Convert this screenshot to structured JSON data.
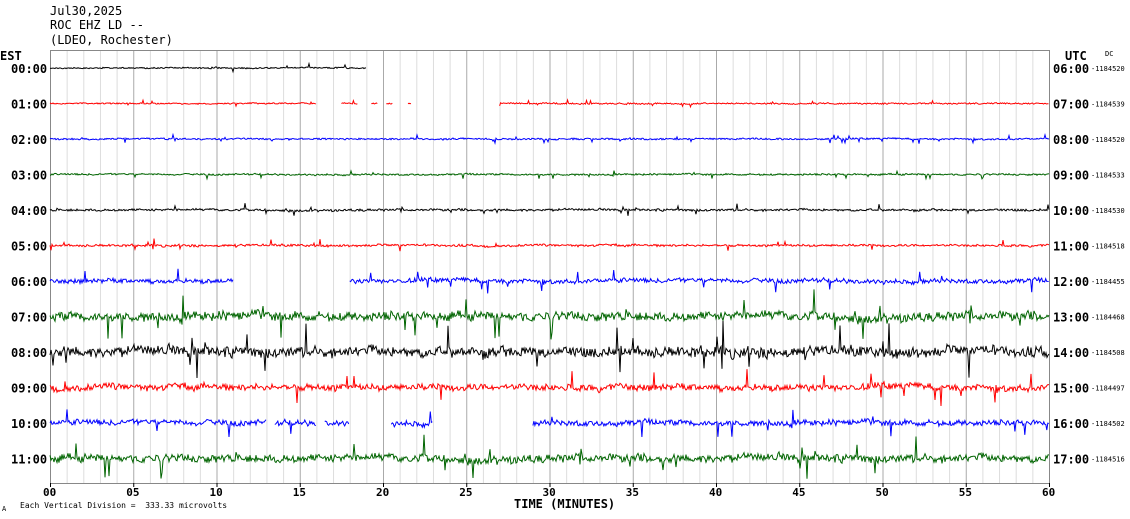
{
  "header": {
    "line1": "Jul30,2025",
    "line2": "ROC EHZ LD --",
    "line3": "(LDEO, Rochester)"
  },
  "left_axis_title": "EST",
  "right_axis_title": "UTC",
  "dc_title": "DC",
  "footer": {
    "division_note": "Each Vertical Division =  333.33 microvolts",
    "corner_mark": "A"
  },
  "chart_data": {
    "type": "line",
    "title": "",
    "xlabel": "TIME (MINUTES)",
    "ylabel": "",
    "xlim": [
      0,
      60
    ],
    "x_ticks": [
      "00",
      "05",
      "10",
      "15",
      "20",
      "25",
      "30",
      "35",
      "40",
      "45",
      "50",
      "55",
      "60"
    ],
    "grid": "vertical every minute",
    "colors": [
      "#000000",
      "#ff0000",
      "#0000ff",
      "#006400"
    ],
    "rows": [
      {
        "est": "00:00",
        "utc": "06:00",
        "dc": "-1184520",
        "color": "#000000",
        "segments": [
          [
            0,
            19.0
          ]
        ],
        "amp": 1.2
      },
      {
        "est": "01:00",
        "utc": "07:00",
        "dc": "-1184539",
        "color": "#ff0000",
        "segments": [
          [
            0,
            16.0
          ],
          [
            17.5,
            18.5
          ],
          [
            19.3,
            19.7
          ],
          [
            20.2,
            20.6
          ],
          [
            21.5,
            21.7
          ],
          [
            27.0,
            60
          ]
        ],
        "amp": 1.2
      },
      {
        "est": "02:00",
        "utc": "08:00",
        "dc": "-1184520",
        "color": "#0000ff",
        "segments": [
          [
            0,
            60
          ]
        ],
        "amp": 1.5
      },
      {
        "est": "03:00",
        "utc": "09:00",
        "dc": "-1184533",
        "color": "#006400",
        "segments": [
          [
            0,
            60
          ]
        ],
        "amp": 1.5
      },
      {
        "est": "04:00",
        "utc": "10:00",
        "dc": "-1184530",
        "color": "#000000",
        "segments": [
          [
            0,
            60
          ]
        ],
        "amp": 2
      },
      {
        "est": "05:00",
        "utc": "11:00",
        "dc": "-1184518",
        "color": "#ff0000",
        "segments": [
          [
            0,
            60
          ]
        ],
        "amp": 2
      },
      {
        "est": "06:00",
        "utc": "12:00",
        "dc": "-1184455",
        "color": "#0000ff",
        "segments": [
          [
            0,
            11.0
          ],
          [
            18.0,
            60
          ]
        ],
        "amp": 4
      },
      {
        "est": "07:00",
        "utc": "13:00",
        "dc": "-1184468",
        "color": "#006400",
        "segments": [
          [
            0,
            60
          ]
        ],
        "amp": 8
      },
      {
        "est": "08:00",
        "utc": "14:00",
        "dc": "-1184508",
        "color": "#000000",
        "segments": [
          [
            0,
            60
          ]
        ],
        "amp": 9
      },
      {
        "est": "09:00",
        "utc": "15:00",
        "dc": "-1184497",
        "color": "#ff0000",
        "segments": [
          [
            0,
            60
          ]
        ],
        "amp": 6
      },
      {
        "est": "10:00",
        "utc": "16:00",
        "dc": "-1184502",
        "color": "#0000ff",
        "segments": [
          [
            0,
            13.0
          ],
          [
            13.5,
            16.0
          ],
          [
            16.5,
            18.0
          ],
          [
            20.5,
            23.0
          ],
          [
            29.0,
            60
          ]
        ],
        "amp": 5
      },
      {
        "est": "11:00",
        "utc": "17:00",
        "dc": "-1184516",
        "color": "#006400",
        "segments": [
          [
            0,
            60
          ]
        ],
        "amp": 7
      }
    ]
  }
}
